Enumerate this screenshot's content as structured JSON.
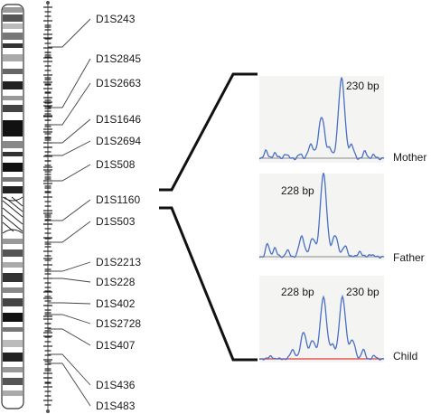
{
  "markers": [
    "D1S243",
    "D1S2845",
    "D1S2663",
    "D1S1646",
    "D1S2694",
    "D1S508",
    "D1S1160",
    "D1S503",
    "D1S2213",
    "D1S228",
    "D1S402",
    "D1S2728",
    "D1S407",
    "D1S436",
    "D1S483"
  ],
  "highlighted_marker": "D1S1160",
  "traces": [
    {
      "sample": "Mother",
      "peak_labels": [
        "230 bp"
      ]
    },
    {
      "sample": "Father",
      "peak_labels": [
        "228 bp"
      ]
    },
    {
      "sample": "Child",
      "peak_labels": [
        "228 bp",
        "230 bp"
      ]
    }
  ],
  "colors": {
    "trace": "#4a6fc7",
    "baseline_child": "#e23b3b",
    "panel_bg": "#f4f4f2",
    "chromosome_dark": "#1a1a1a"
  }
}
